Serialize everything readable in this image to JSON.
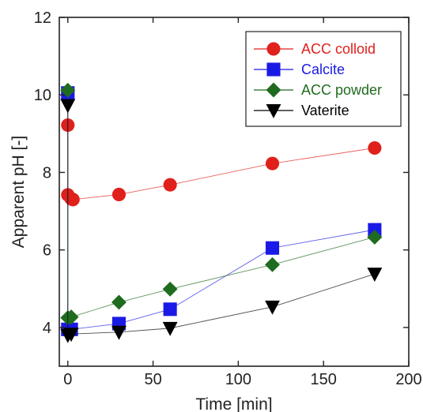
{
  "chart_data": {
    "type": "scatter",
    "xlabel": "Time [min]",
    "ylabel": "Apparent pH [-]",
    "xlim": [
      -5,
      200
    ],
    "ylim": [
      3,
      12
    ],
    "xticks": [
      0,
      50,
      100,
      150,
      200
    ],
    "yticks": [
      4,
      6,
      8,
      10,
      12
    ],
    "grid": false,
    "legend_position": "top-right",
    "series": [
      {
        "name": "ACC colloid",
        "color": "#e0201b",
        "marker": "circle",
        "points": [
          [
            0,
            9.22
          ],
          [
            0,
            7.42
          ],
          [
            2,
            7.32
          ],
          [
            3,
            7.3
          ],
          [
            30,
            7.43
          ],
          [
            60,
            7.68
          ],
          [
            120,
            8.23
          ],
          [
            180,
            8.63
          ]
        ]
      },
      {
        "name": "Calcite",
        "color": "#1a1ae6",
        "marker": "square",
        "points": [
          [
            0,
            10.05
          ],
          [
            0,
            3.95
          ],
          [
            2,
            3.95
          ],
          [
            30,
            4.1
          ],
          [
            60,
            4.47
          ],
          [
            120,
            6.05
          ],
          [
            180,
            6.52
          ]
        ]
      },
      {
        "name": "ACC powder",
        "color": "#1f6b1f",
        "marker": "diamond",
        "points": [
          [
            0,
            10.12
          ],
          [
            0,
            4.25
          ],
          [
            2,
            4.27
          ],
          [
            30,
            4.65
          ],
          [
            60,
            4.99
          ],
          [
            120,
            5.62
          ],
          [
            180,
            6.33
          ]
        ]
      },
      {
        "name": "Vaterite",
        "color": "#000000",
        "marker": "triangle-down",
        "points": [
          [
            0,
            9.73
          ],
          [
            0,
            3.8
          ],
          [
            2,
            3.83
          ],
          [
            30,
            3.88
          ],
          [
            60,
            3.98
          ],
          [
            120,
            4.53
          ],
          [
            180,
            5.38
          ]
        ]
      }
    ]
  }
}
